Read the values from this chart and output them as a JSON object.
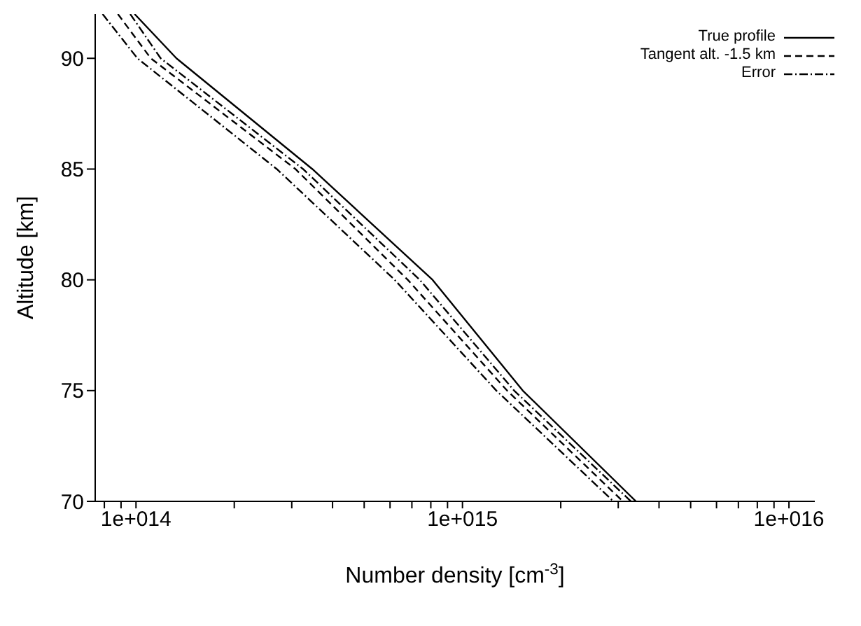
{
  "chart_data": {
    "type": "line",
    "xlabel": "Number density [cm$^{-3}$]",
    "ylabel": "Altitude [km]",
    "log": "x",
    "xlim": [
      75000000000000.0,
      1.2e+16
    ],
    "xticks": [
      {
        "value": 80000000000000.0,
        "label": null
      },
      {
        "value": 90000000000000.0,
        "label": null
      },
      {
        "value": 100000000000000.0,
        "label": "1e+014"
      },
      {
        "value": 200000000000000.0,
        "label": null
      },
      {
        "value": 300000000000000.0,
        "label": null
      },
      {
        "value": 400000000000000.0,
        "label": null
      },
      {
        "value": 500000000000000.0,
        "label": null
      },
      {
        "value": 600000000000000.0,
        "label": null
      },
      {
        "value": 700000000000000.0,
        "label": null
      },
      {
        "value": 800000000000000.0,
        "label": null
      },
      {
        "value": 900000000000000.0,
        "label": null
      },
      {
        "value": 1000000000000000.0,
        "label": "1e+015"
      },
      {
        "value": 2000000000000000.0,
        "label": null
      },
      {
        "value": 3000000000000000.0,
        "label": null
      },
      {
        "value": 4000000000000000.0,
        "label": null
      },
      {
        "value": 5000000000000000.0,
        "label": null
      },
      {
        "value": 6000000000000000.0,
        "label": null
      },
      {
        "value": 7000000000000000.0,
        "label": null
      },
      {
        "value": 8000000000000000.0,
        "label": null
      },
      {
        "value": 9000000000000000.0,
        "label": null
      },
      {
        "value": 1e+16,
        "label": "1e+016"
      }
    ],
    "ylim": [
      70,
      92
    ],
    "yticks": [
      70,
      75,
      80,
      85,
      90
    ],
    "legend": "top right",
    "marker": "none",
    "series": [
      {
        "name": "True profile",
        "color": "#000000",
        "line_style": "solid",
        "x": [
          99000000000000.0,
          133000000000000.0,
          347000000000000.0,
          810000000000000.0,
          1530000000000000.0,
          3400000000000000.0
        ],
        "values": [
          92,
          90,
          85,
          80,
          75,
          70
        ]
      },
      {
        "name": "Tangent alt. -1.5 km",
        "color": "#000000",
        "line_style": "dashed",
        "x": [
          88000000000000.0,
          111000000000000.0,
          308000000000000.0,
          680000000000000.0,
          1370000000000000.0,
          3100000000000000.0
        ],
        "values": [
          92,
          90,
          85,
          80,
          75,
          70
        ]
      },
      {
        "name": "Error",
        "color": "#000000",
        "line_style": "dashdot",
        "x": [
          96000000000000.0,
          119000000000000.0,
          325000000000000.0,
          740000000000000.0,
          1440000000000000.0,
          3280000000000000.0
        ],
        "values": [
          92,
          90,
          85,
          80,
          75,
          70
        ]
      },
      {
        "color": "#000000",
        "line_style": "dashdot",
        "x": [
          79000000000000.0,
          101000000000000.0,
          270000000000000.0,
          620000000000000.0,
          1270000000000000.0,
          2900000000000000.0
        ],
        "values": [
          92,
          90,
          85,
          80,
          75,
          70
        ]
      }
    ]
  }
}
